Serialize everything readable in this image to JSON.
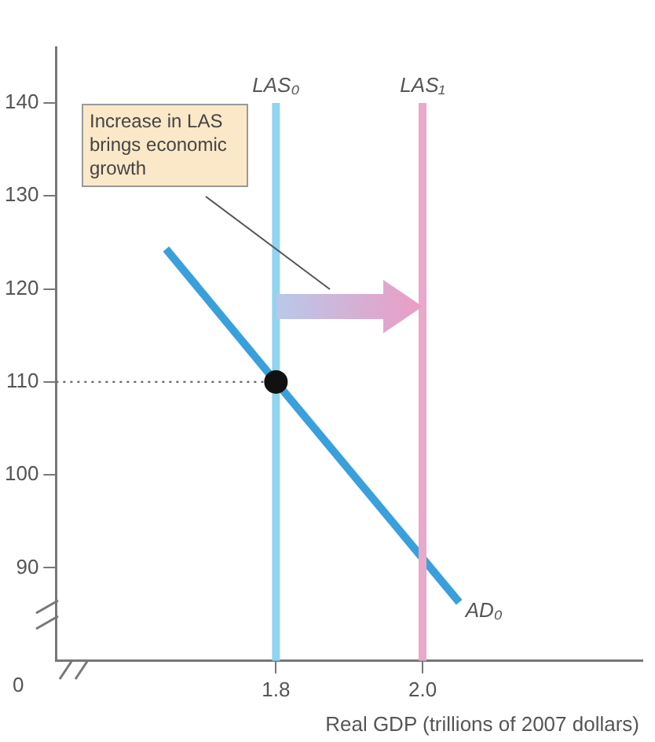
{
  "chart_data": {
    "type": "line",
    "xlabel": "Real GDP (trillions of 2007 dollars)",
    "xlim": [
      1.5,
      2.3
    ],
    "xticks": [
      1.8,
      {
        "value": 2,
        "label": "2.0"
      }
    ],
    "ylim": [
      80,
      146
    ],
    "yticks": [
      90,
      100,
      110,
      120,
      130,
      140
    ],
    "grid": false,
    "legend": false,
    "series": [
      {
        "name": "LAS₀",
        "color": "#90d4f0",
        "x": [
          1.8,
          1.8
        ],
        "values": [
          80,
          140
        ]
      },
      {
        "name": "LAS₁",
        "color": "#eaa8cb",
        "x": [
          2,
          2
        ],
        "values": [
          80,
          140
        ]
      },
      {
        "name": "AD₀",
        "color": "#3aa0dc",
        "x": [
          1.65,
          1.8,
          2.05
        ],
        "values": [
          124.3,
          110,
          86.3
        ]
      },
      {
        "color": "#666666",
        "line_style": "dotted",
        "x": [
          1.5,
          1.8
        ],
        "values": [
          110,
          110
        ]
      },
      {
        "type": "scatter",
        "color": "#111111",
        "marker": "circle",
        "x": [
          1.8
        ],
        "values": [
          110
        ]
      }
    ],
    "annotations": [
      "Increase in LAS brings economic growth",
      "0"
    ]
  }
}
